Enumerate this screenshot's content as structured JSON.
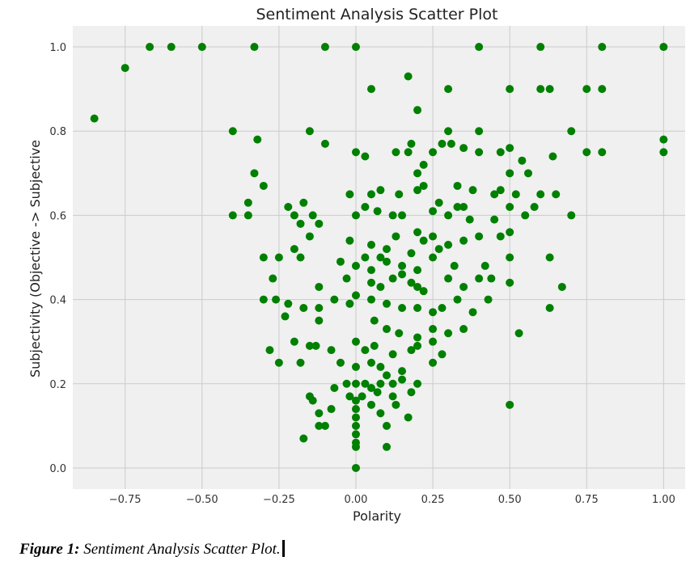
{
  "chart_data": {
    "type": "scatter",
    "title": "Sentiment Analysis Scatter Plot",
    "xlabel": "Polarity",
    "ylabel": "Subjectivity (Objective -> Subjective",
    "xlim": [
      -0.92,
      1.07
    ],
    "ylim": [
      -0.05,
      1.05
    ],
    "xticks": [
      -0.75,
      -0.5,
      -0.25,
      0.0,
      0.25,
      0.5,
      0.75,
      1.0
    ],
    "xtick_labels": [
      "−0.75",
      "−0.50",
      "−0.25",
      "0.00",
      "0.25",
      "0.50",
      "0.75",
      "1.00"
    ],
    "yticks": [
      0.0,
      0.2,
      0.4,
      0.6,
      0.8,
      1.0
    ],
    "ytick_labels": [
      "0.0",
      "0.2",
      "0.4",
      "0.6",
      "0.8",
      "1.0"
    ],
    "grid": true,
    "colors": {
      "point": "#008000",
      "plot_bg": "#f0f0f0",
      "grid": "#cbcbcb"
    },
    "series": [
      {
        "points": [
          [
            -0.85,
            0.83
          ],
          [
            -0.75,
            0.95
          ],
          [
            -0.67,
            1.0
          ],
          [
            -0.6,
            1.0
          ],
          [
            -0.5,
            1.0
          ],
          [
            -0.33,
            1.0
          ],
          [
            -0.1,
            1.0
          ],
          [
            0.0,
            1.0
          ],
          [
            0.4,
            1.0
          ],
          [
            0.6,
            1.0
          ],
          [
            0.8,
            1.0
          ],
          [
            1.0,
            1.0
          ],
          [
            0.05,
            0.9
          ],
          [
            0.17,
            0.93
          ],
          [
            0.3,
            0.9
          ],
          [
            0.5,
            0.9
          ],
          [
            0.6,
            0.9
          ],
          [
            0.63,
            0.9
          ],
          [
            0.75,
            0.9
          ],
          [
            0.8,
            0.9
          ],
          [
            0.2,
            0.85
          ],
          [
            -0.4,
            0.8
          ],
          [
            -0.15,
            0.8
          ],
          [
            0.3,
            0.8
          ],
          [
            0.4,
            0.8
          ],
          [
            0.7,
            0.8
          ],
          [
            -0.32,
            0.78
          ],
          [
            -0.1,
            0.77
          ],
          [
            1.0,
            0.78
          ],
          [
            0.0,
            0.75
          ],
          [
            0.03,
            0.74
          ],
          [
            0.13,
            0.75
          ],
          [
            0.17,
            0.75
          ],
          [
            0.18,
            0.77
          ],
          [
            0.25,
            0.75
          ],
          [
            0.28,
            0.77
          ],
          [
            0.31,
            0.77
          ],
          [
            0.35,
            0.76
          ],
          [
            0.4,
            0.75
          ],
          [
            0.47,
            0.75
          ],
          [
            0.5,
            0.76
          ],
          [
            0.75,
            0.75
          ],
          [
            0.8,
            0.75
          ],
          [
            1.0,
            0.75
          ],
          [
            0.54,
            0.73
          ],
          [
            0.64,
            0.74
          ],
          [
            -0.33,
            0.7
          ],
          [
            0.2,
            0.7
          ],
          [
            0.22,
            0.72
          ],
          [
            0.5,
            0.7
          ],
          [
            0.56,
            0.7
          ],
          [
            -0.3,
            0.67
          ],
          [
            0.2,
            0.66
          ],
          [
            0.22,
            0.67
          ],
          [
            0.33,
            0.67
          ],
          [
            0.38,
            0.66
          ],
          [
            0.47,
            0.66
          ],
          [
            -0.35,
            0.63
          ],
          [
            -0.22,
            0.62
          ],
          [
            -0.17,
            0.63
          ],
          [
            -0.02,
            0.65
          ],
          [
            0.05,
            0.65
          ],
          [
            0.08,
            0.66
          ],
          [
            0.14,
            0.65
          ],
          [
            0.27,
            0.63
          ],
          [
            0.35,
            0.62
          ],
          [
            0.45,
            0.65
          ],
          [
            0.52,
            0.65
          ],
          [
            0.6,
            0.65
          ],
          [
            0.65,
            0.65
          ],
          [
            -0.4,
            0.6
          ],
          [
            -0.35,
            0.6
          ],
          [
            -0.2,
            0.6
          ],
          [
            -0.18,
            0.58
          ],
          [
            -0.14,
            0.6
          ],
          [
            -0.12,
            0.58
          ],
          [
            0.0,
            0.6
          ],
          [
            0.03,
            0.62
          ],
          [
            0.07,
            0.61
          ],
          [
            0.12,
            0.6
          ],
          [
            0.15,
            0.6
          ],
          [
            0.25,
            0.61
          ],
          [
            0.3,
            0.6
          ],
          [
            0.33,
            0.62
          ],
          [
            0.37,
            0.59
          ],
          [
            0.45,
            0.59
          ],
          [
            0.5,
            0.62
          ],
          [
            0.55,
            0.6
          ],
          [
            0.58,
            0.62
          ],
          [
            0.7,
            0.6
          ],
          [
            -0.15,
            0.55
          ],
          [
            -0.02,
            0.54
          ],
          [
            0.05,
            0.53
          ],
          [
            0.1,
            0.52
          ],
          [
            0.13,
            0.55
          ],
          [
            0.2,
            0.56
          ],
          [
            0.22,
            0.54
          ],
          [
            0.25,
            0.55
          ],
          [
            0.3,
            0.53
          ],
          [
            0.35,
            0.54
          ],
          [
            0.4,
            0.55
          ],
          [
            0.47,
            0.55
          ],
          [
            0.5,
            0.56
          ],
          [
            0.03,
            0.5
          ],
          [
            0.08,
            0.5
          ],
          [
            0.18,
            0.51
          ],
          [
            0.27,
            0.52
          ],
          [
            -0.3,
            0.5
          ],
          [
            -0.25,
            0.5
          ],
          [
            -0.2,
            0.52
          ],
          [
            -0.18,
            0.5
          ],
          [
            -0.05,
            0.49
          ],
          [
            0.0,
            0.48
          ],
          [
            0.05,
            0.47
          ],
          [
            0.1,
            0.49
          ],
          [
            0.15,
            0.48
          ],
          [
            0.2,
            0.47
          ],
          [
            0.25,
            0.5
          ],
          [
            0.32,
            0.48
          ],
          [
            0.42,
            0.48
          ],
          [
            0.5,
            0.5
          ],
          [
            0.63,
            0.5
          ],
          [
            -0.27,
            0.45
          ],
          [
            -0.12,
            0.43
          ],
          [
            -0.03,
            0.45
          ],
          [
            0.05,
            0.44
          ],
          [
            0.08,
            0.43
          ],
          [
            0.12,
            0.45
          ],
          [
            0.15,
            0.46
          ],
          [
            0.18,
            0.44
          ],
          [
            0.2,
            0.43
          ],
          [
            0.22,
            0.42
          ],
          [
            0.3,
            0.45
          ],
          [
            0.35,
            0.43
          ],
          [
            0.4,
            0.45
          ],
          [
            0.44,
            0.45
          ],
          [
            0.5,
            0.44
          ],
          [
            0.67,
            0.43
          ],
          [
            -0.3,
            0.4
          ],
          [
            -0.26,
            0.4
          ],
          [
            -0.22,
            0.39
          ],
          [
            -0.17,
            0.38
          ],
          [
            -0.12,
            0.38
          ],
          [
            -0.07,
            0.4
          ],
          [
            -0.02,
            0.39
          ],
          [
            0.0,
            0.41
          ],
          [
            0.05,
            0.4
          ],
          [
            0.1,
            0.39
          ],
          [
            0.15,
            0.38
          ],
          [
            0.2,
            0.38
          ],
          [
            0.25,
            0.37
          ],
          [
            0.28,
            0.38
          ],
          [
            0.33,
            0.4
          ],
          [
            0.38,
            0.37
          ],
          [
            0.43,
            0.4
          ],
          [
            0.63,
            0.38
          ],
          [
            -0.23,
            0.36
          ],
          [
            -0.12,
            0.35
          ],
          [
            0.06,
            0.35
          ],
          [
            0.1,
            0.33
          ],
          [
            0.14,
            0.32
          ],
          [
            0.2,
            0.31
          ],
          [
            0.25,
            0.33
          ],
          [
            0.3,
            0.32
          ],
          [
            0.35,
            0.33
          ],
          [
            -0.2,
            0.3
          ],
          [
            -0.15,
            0.29
          ],
          [
            -0.13,
            0.29
          ],
          [
            -0.08,
            0.28
          ],
          [
            -0.28,
            0.28
          ],
          [
            0.0,
            0.3
          ],
          [
            0.03,
            0.28
          ],
          [
            0.06,
            0.29
          ],
          [
            0.12,
            0.27
          ],
          [
            0.18,
            0.28
          ],
          [
            0.2,
            0.29
          ],
          [
            0.25,
            0.3
          ],
          [
            0.28,
            0.27
          ],
          [
            0.53,
            0.32
          ],
          [
            -0.25,
            0.25
          ],
          [
            -0.18,
            0.25
          ],
          [
            -0.05,
            0.25
          ],
          [
            0.0,
            0.24
          ],
          [
            0.05,
            0.25
          ],
          [
            0.08,
            0.24
          ],
          [
            0.1,
            0.22
          ],
          [
            0.15,
            0.23
          ],
          [
            0.25,
            0.25
          ],
          [
            -0.03,
            0.2
          ],
          [
            0.0,
            0.2
          ],
          [
            0.03,
            0.2
          ],
          [
            0.05,
            0.19
          ],
          [
            0.08,
            0.2
          ],
          [
            0.12,
            0.2
          ],
          [
            0.15,
            0.21
          ],
          [
            0.2,
            0.2
          ],
          [
            -0.07,
            0.19
          ],
          [
            -0.02,
            0.17
          ],
          [
            0.02,
            0.17
          ],
          [
            0.07,
            0.18
          ],
          [
            0.12,
            0.17
          ],
          [
            0.18,
            0.18
          ],
          [
            -0.15,
            0.17
          ],
          [
            -0.14,
            0.16
          ],
          [
            0.0,
            0.16
          ],
          [
            0.05,
            0.15
          ],
          [
            0.13,
            0.15
          ],
          [
            0.5,
            0.15
          ],
          [
            -0.08,
            0.14
          ],
          [
            0.0,
            0.14
          ],
          [
            0.08,
            0.13
          ],
          [
            0.17,
            0.12
          ],
          [
            -0.12,
            0.13
          ],
          [
            -0.12,
            0.1
          ],
          [
            -0.1,
            0.1
          ],
          [
            0.0,
            0.12
          ],
          [
            0.0,
            0.1
          ],
          [
            0.0,
            0.08
          ],
          [
            0.1,
            0.1
          ],
          [
            0.0,
            0.06
          ],
          [
            0.0,
            0.05
          ],
          [
            0.1,
            0.05
          ],
          [
            -0.17,
            0.07
          ],
          [
            0.0,
            0.0
          ]
        ]
      }
    ]
  },
  "caption": {
    "label": "Figure 1:",
    "text": " Sentiment Analysis Scatter Plot."
  }
}
